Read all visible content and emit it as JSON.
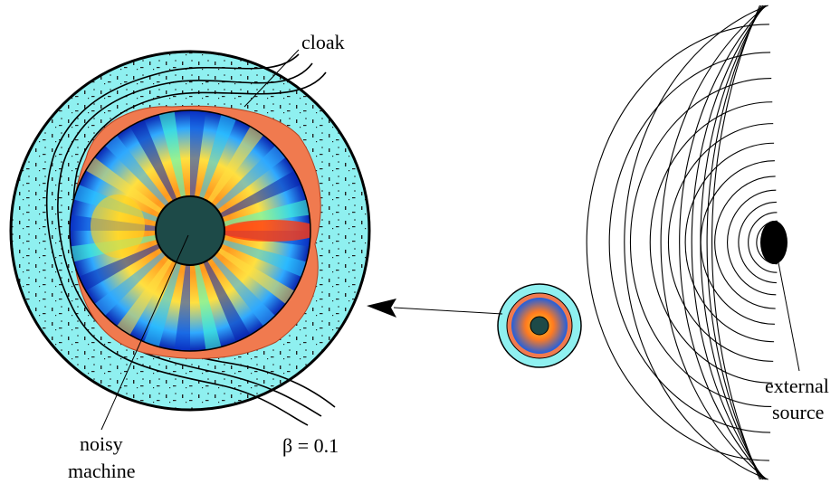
{
  "labels": {
    "cloak": "cloak",
    "noisy": "noisy",
    "machine": "machine",
    "beta": "β = 0.1",
    "external": "external",
    "source": "source"
  },
  "colors": {
    "cloak_fill": "#8ff0f0",
    "core_fill": "#1d4a48",
    "ring_fill": "#f07a4f",
    "source_fill": "#000000",
    "line": "#000000"
  }
}
